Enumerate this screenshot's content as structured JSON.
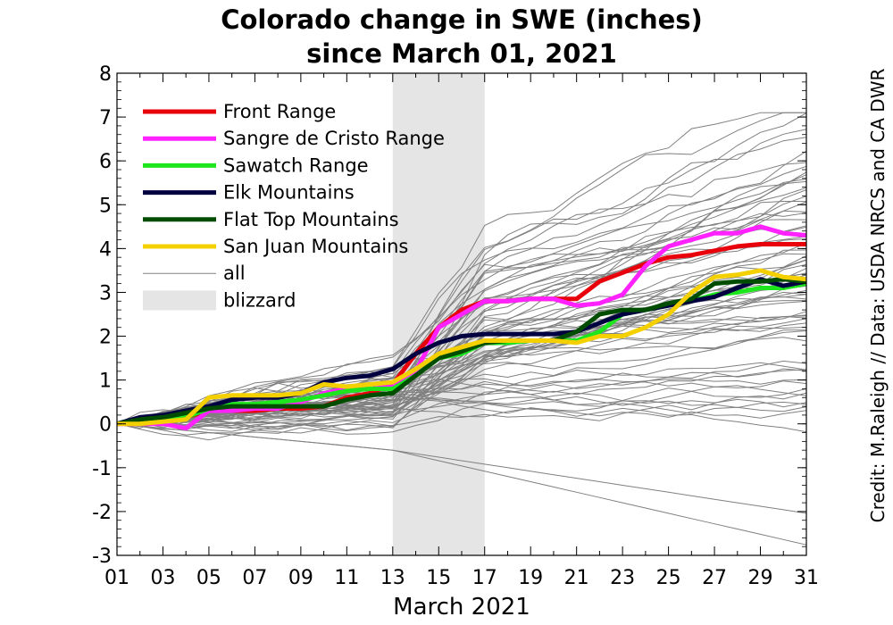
{
  "chart_data": {
    "type": "line",
    "title_line1": "Colorado change in SWE (inches)",
    "title_line2": "since March 01, 2021",
    "xlabel": "March 2021",
    "ylabel": "",
    "credit": "Credit: M.Raleigh // Data: USDA NRCS and CA DWR",
    "xlim": [
      1,
      31
    ],
    "ylim": [
      -3,
      8
    ],
    "x_ticks": [
      {
        "value": 1,
        "label": "01"
      },
      {
        "value": 3,
        "label": "03"
      },
      {
        "value": 5,
        "label": "05"
      },
      {
        "value": 7,
        "label": "07"
      },
      {
        "value": 9,
        "label": "09"
      },
      {
        "value": 11,
        "label": "11"
      },
      {
        "value": 13,
        "label": "13"
      },
      {
        "value": 15,
        "label": "15"
      },
      {
        "value": 17,
        "label": "17"
      },
      {
        "value": 19,
        "label": "19"
      },
      {
        "value": 21,
        "label": "21"
      },
      {
        "value": 23,
        "label": "23"
      },
      {
        "value": 25,
        "label": "25"
      },
      {
        "value": 27,
        "label": "27"
      },
      {
        "value": 29,
        "label": "29"
      },
      {
        "value": 31,
        "label": "31"
      }
    ],
    "y_ticks": [
      {
        "value": 8,
        "label": "8"
      },
      {
        "value": 7,
        "label": "7"
      },
      {
        "value": 6,
        "label": "6"
      },
      {
        "value": 5,
        "label": "5"
      },
      {
        "value": 4,
        "label": "4"
      },
      {
        "value": 3,
        "label": "3"
      },
      {
        "value": 2,
        "label": "2"
      },
      {
        "value": 1,
        "label": "1"
      },
      {
        "value": 0,
        "label": "0"
      },
      {
        "value": -1,
        "label": "-1"
      },
      {
        "value": -2,
        "label": "-2"
      },
      {
        "value": -3,
        "label": "-3"
      }
    ],
    "blizzard": {
      "x_start": 13,
      "x_end": 17,
      "color": "#e5e5e5",
      "label": "blizzard"
    },
    "legend_position": "top-left",
    "x": [
      1,
      2,
      3,
      4,
      5,
      6,
      7,
      8,
      9,
      10,
      11,
      12,
      13,
      14,
      15,
      16,
      17,
      18,
      19,
      20,
      21,
      22,
      23,
      24,
      25,
      26,
      27,
      28,
      29,
      30,
      31
    ],
    "series": [
      {
        "name": "Front Range",
        "color": "#e8000b",
        "values": [
          0,
          0.05,
          0.1,
          0.15,
          0.3,
          0.3,
          0.3,
          0.35,
          0.35,
          0.4,
          0.6,
          0.7,
          0.9,
          1.6,
          2.2,
          2.6,
          2.8,
          2.8,
          2.85,
          2.85,
          2.85,
          3.25,
          3.45,
          3.65,
          3.8,
          3.85,
          3.95,
          4.05,
          4.1,
          4.1,
          4.1
        ]
      },
      {
        "name": "Sangre de Cristo Range",
        "color": "#ff22ff",
        "values": [
          0,
          0,
          0,
          -0.1,
          0.3,
          0.3,
          0.35,
          0.35,
          0.5,
          0.7,
          0.8,
          0.8,
          0.85,
          1.2,
          2.2,
          2.5,
          2.8,
          2.8,
          2.85,
          2.85,
          2.7,
          2.75,
          2.95,
          3.6,
          4.05,
          4.2,
          4.35,
          4.35,
          4.5,
          4.35,
          4.3
        ]
      },
      {
        "name": "Sawatch Range",
        "color": "#1ee61e",
        "values": [
          0,
          0.05,
          0.1,
          0.15,
          0.35,
          0.45,
          0.45,
          0.5,
          0.55,
          0.65,
          0.75,
          0.8,
          0.8,
          1.1,
          1.5,
          1.6,
          1.85,
          1.85,
          1.9,
          1.9,
          1.9,
          2.1,
          2.5,
          2.6,
          2.7,
          2.8,
          2.95,
          3,
          3.1,
          3.1,
          3.2
        ]
      },
      {
        "name": "Elk Mountains",
        "color": "#000040",
        "values": [
          0,
          0.15,
          0.2,
          0.3,
          0.4,
          0.55,
          0.6,
          0.6,
          0.7,
          0.95,
          1.05,
          1.1,
          1.25,
          1.6,
          1.85,
          2,
          2.05,
          2.05,
          2.05,
          2.05,
          2.1,
          2.3,
          2.5,
          2.6,
          2.7,
          2.8,
          2.9,
          3.1,
          3.3,
          3.15,
          3.25
        ]
      },
      {
        "name": "Flat Top Mountains",
        "color": "#004d00",
        "values": [
          0,
          0.1,
          0.15,
          0.25,
          0.35,
          0.4,
          0.4,
          0.4,
          0.4,
          0.4,
          0.55,
          0.65,
          0.7,
          1.1,
          1.5,
          1.65,
          1.85,
          1.9,
          1.9,
          1.9,
          2.1,
          2.5,
          2.6,
          2.6,
          2.75,
          2.85,
          3.2,
          3.25,
          3.25,
          3.3,
          3.25
        ]
      },
      {
        "name": "San Juan Mountains",
        "color": "#f5d000",
        "values": [
          0,
          0,
          0.05,
          0.1,
          0.6,
          0.65,
          0.65,
          0.65,
          0.7,
          0.9,
          0.85,
          0.9,
          0.95,
          1.25,
          1.6,
          1.75,
          1.9,
          1.9,
          1.9,
          1.9,
          1.85,
          2,
          2,
          2.2,
          2.5,
          3,
          3.35,
          3.4,
          3.5,
          3.35,
          3.3
        ]
      }
    ],
    "all_sites": {
      "name": "all",
      "color": "#808080",
      "count": 70
    }
  }
}
